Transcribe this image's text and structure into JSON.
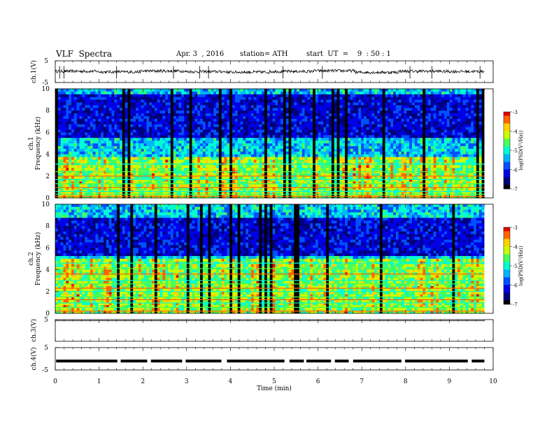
{
  "header": {
    "title": "VLF  Spectra",
    "date": "Apr. 3  , 2016",
    "station": "station= ATH",
    "start": "start  UT  =    9  : 50 : 1"
  },
  "chart_data": [
    {
      "type": "line",
      "panel": "ch1-waveform",
      "ylabel": "ch.1(V)",
      "ylim": [
        -5,
        5
      ],
      "yticklabels": [
        "5",
        "-5"
      ],
      "xlim": [
        0,
        10
      ],
      "baseline_v": 0,
      "series": [
        {
          "values": [
            0.2,
            -0.1,
            0.3,
            0.0,
            -0.2,
            0.1,
            0.4,
            -0.3,
            0.2,
            0.1
          ]
        }
      ],
      "spikes": [
        0.1,
        0.2,
        1.4,
        2.7,
        3.3,
        3.5,
        5.2,
        6.1,
        8.1,
        8.6,
        9.7
      ],
      "color": "#000000"
    },
    {
      "type": "heatmap",
      "panel": "ch1-spectrogram",
      "ylabel": "ch.1",
      "ylabel2": "Frequency  (kHz)",
      "ylim": [
        0,
        10
      ],
      "yticklabels": [
        "0",
        "2",
        "4",
        "6",
        "8",
        "10"
      ],
      "xlim": [
        0,
        9.8
      ],
      "colorbar": {
        "label": "log(PSD(V²/Hz))",
        "range": [
          -7,
          -3
        ],
        "ticklabels": [
          "-3",
          "-4",
          "-5",
          "-6",
          "-7"
        ]
      },
      "low_band_top_khz": 6.2,
      "dark_band_khz": [
        0.5,
        4.5
      ],
      "lines_khz": [
        0.15,
        0.35,
        0.6,
        0.95,
        1.3,
        1.7,
        2.0,
        2.4,
        3.1
      ]
    },
    {
      "type": "heatmap",
      "panel": "ch2-spectrogram",
      "ylabel": "ch.2",
      "ylabel2": "Frequency  (kHz)",
      "ylim": [
        0,
        10
      ],
      "yticklabels": [
        "0",
        "2",
        "4",
        "6",
        "8",
        "10"
      ],
      "xlim": [
        0,
        9.8
      ],
      "colorbar": {
        "label": "log(PSD(V²/Hz))",
        "range": [
          -7,
          -3
        ],
        "ticklabels": [
          "-3",
          "-4",
          "-5",
          "-6",
          "-7"
        ]
      },
      "low_band_top_khz": 5.0,
      "dark_band_khz": [
        1.3,
        4.8
      ],
      "lines_khz": [
        0.2,
        0.55,
        0.95,
        1.25,
        1.5,
        2.0,
        2.3,
        2.7,
        3.0,
        3.6,
        4.1,
        4.6
      ]
    },
    {
      "type": "line",
      "panel": "ch3-waveform",
      "ylabel": "ch.3(V)",
      "ylim": [
        -5,
        5
      ],
      "yticklabels": [
        "5"
      ],
      "xlim": [
        0,
        10
      ],
      "baseline_v": 5,
      "series": [
        {
          "values": [
            5,
            5,
            5,
            5,
            5,
            5,
            5,
            5,
            5,
            5
          ]
        }
      ],
      "color": "#555555"
    },
    {
      "type": "line",
      "panel": "ch4-waveform",
      "ylabel": "ch.4(V)",
      "ylim": [
        -5,
        5
      ],
      "yticklabels": [
        "5",
        "-5"
      ],
      "xlim": [
        0,
        10
      ],
      "baseline_v": -1,
      "series": [
        {
          "values": [
            -1,
            -1,
            -1,
            -1,
            -1,
            -1,
            -1,
            -1,
            -1,
            -1
          ]
        }
      ],
      "color": "#000000"
    }
  ],
  "xaxis": {
    "label": "Time  (min)",
    "ticks": [
      0,
      1,
      2,
      3,
      4,
      5,
      6,
      7,
      8,
      9,
      10
    ],
    "ticklabels": [
      "0",
      "1",
      "2",
      "3",
      "4",
      "5",
      "6",
      "7",
      "8",
      "9",
      "10"
    ]
  },
  "colormap": [
    "#000000",
    "#00007a",
    "#0000e6",
    "#0050ff",
    "#00b4ff",
    "#00ffd2",
    "#46ff5a",
    "#c8ff00",
    "#ffd200",
    "#ff6400",
    "#e60000",
    "#ffd2d2"
  ]
}
